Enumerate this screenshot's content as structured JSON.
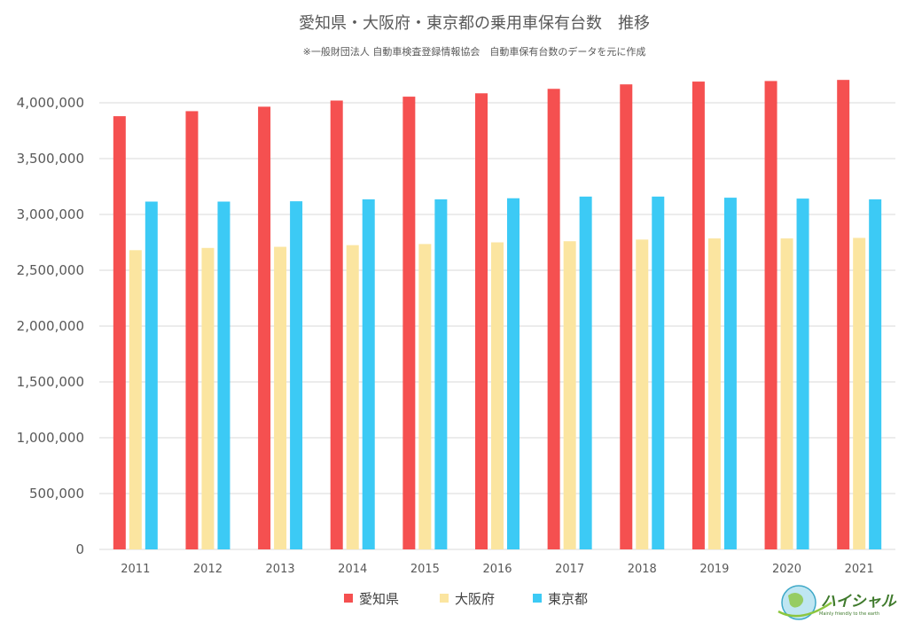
{
  "chart_data": {
    "type": "bar",
    "title": "愛知県・大阪府・東京都の乗用車保有台数　推移",
    "subtitle": "※一般財団法人 自動車検査登録情報協会　自動車保有台数のデータを元に作成",
    "xlabel": "",
    "ylabel": "",
    "ylim": [
      0,
      4000000
    ],
    "yticks": [
      {
        "value": 0,
        "label": "0"
      },
      {
        "value": 500000,
        "label": "500,000"
      },
      {
        "value": 1000000,
        "label": "1,000,000"
      },
      {
        "value": 1500000,
        "label": "1,500,000"
      },
      {
        "value": 2000000,
        "label": "2,000,000"
      },
      {
        "value": 2500000,
        "label": "2,500,000"
      },
      {
        "value": 3000000,
        "label": "3,000,000"
      },
      {
        "value": 3500000,
        "label": "3,500,000"
      },
      {
        "value": 4000000,
        "label": "4,000,000"
      }
    ],
    "grid": true,
    "legend_position": "bottom",
    "categories": [
      "2011",
      "2012",
      "2013",
      "2014",
      "2015",
      "2016",
      "2017",
      "2018",
      "2019",
      "2020",
      "2021"
    ],
    "series": [
      {
        "name": "愛知県",
        "color": "#f55050",
        "values": [
          3880000,
          3925000,
          3965000,
          4020000,
          4055000,
          4085000,
          4125000,
          4165000,
          4190000,
          4195000,
          4205000
        ]
      },
      {
        "name": "大阪府",
        "color": "#fbe5a0",
        "values": [
          2680000,
          2700000,
          2710000,
          2725000,
          2735000,
          2750000,
          2760000,
          2775000,
          2785000,
          2785000,
          2790000
        ]
      },
      {
        "name": "東京都",
        "color": "#3ccaf5",
        "values": [
          3115000,
          3115000,
          3118000,
          3135000,
          3135000,
          3145000,
          3160000,
          3160000,
          3150000,
          3142000,
          3135000
        ]
      }
    ]
  },
  "logo": {
    "text": "ハイシャル",
    "tagline": "Mainly friendly to the earth"
  }
}
